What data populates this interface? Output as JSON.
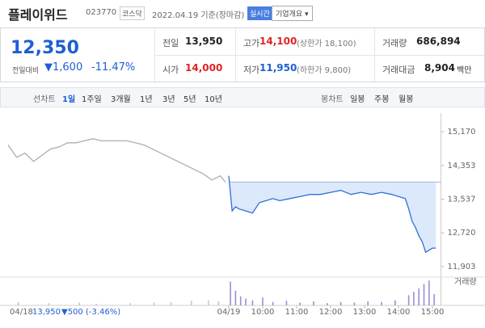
{
  "header": {
    "name": "플레이위드",
    "code": "023770",
    "market": "코스닥",
    "date": "2022.04.19 기준(장마감)",
    "realtime": "실시간",
    "company": "기업개요 ▾"
  },
  "price": {
    "current": "12,350",
    "change_label": "전일대비",
    "change": "▼1,600",
    "change_pct": "-11.47%",
    "stats": [
      {
        "label": "전일",
        "value": "13,950"
      },
      {
        "label": "고가",
        "value": "14,100",
        "note": "(상한가 18,100)"
      },
      {
        "label": "거래량",
        "value": "686,894"
      },
      {
        "label": "시가",
        "value": "14,000"
      },
      {
        "label": "저가",
        "value": "11,950",
        "note": "(하한가 9,800)"
      },
      {
        "label": "거래대금",
        "value": "8,904",
        "unit": "백만"
      }
    ]
  },
  "tabs": {
    "line_label": "선차트",
    "line": [
      "1일",
      "1주일",
      "3개월",
      "1년",
      "3년",
      "5년",
      "10년"
    ],
    "candle_label": "봉차트",
    "candle": [
      "일봉",
      "주봉",
      "월봉"
    ]
  },
  "chart_data": {
    "type": "line",
    "xlim": [
      0,
      12.75
    ],
    "xticks": [
      {
        "value": 6.5,
        "label": "04/19"
      },
      {
        "value": 7.5,
        "label": "10:00"
      },
      {
        "value": 8.5,
        "label": "11:00"
      },
      {
        "value": 9.5,
        "label": "12:00"
      },
      {
        "value": 10.5,
        "label": "13:00"
      },
      {
        "value": 11.5,
        "label": "14:00"
      },
      {
        "value": 12.5,
        "label": "15:00"
      }
    ],
    "ylim": [
      11707,
      15620
    ],
    "yticks": [
      {
        "value": 15170,
        "label": "15,170"
      },
      {
        "value": 14353,
        "label": "14,353"
      },
      {
        "value": 13537,
        "label": "13,537"
      },
      {
        "value": 12720,
        "label": "12,720"
      },
      {
        "value": 11903,
        "label": "11,903"
      }
    ],
    "baseline": 13950,
    "series": [
      {
        "color": "#a9adb3",
        "x": [
          0,
          0.25,
          0.5,
          0.75,
          1,
          1.25,
          1.5,
          1.75,
          2,
          2.25,
          2.5,
          2.75,
          3,
          3.25,
          3.5,
          3.75,
          4,
          4.25,
          4.5,
          4.75,
          5,
          5.25,
          5.5,
          5.75,
          6,
          6.25,
          6.4
        ],
        "values": [
          14850,
          14550,
          14650,
          14450,
          14600,
          14750,
          14800,
          14900,
          14900,
          14950,
          15000,
          14950,
          14950,
          14950,
          14950,
          14900,
          14850,
          14750,
          14650,
          14550,
          14450,
          14350,
          14250,
          14150,
          14000,
          14100,
          13950
        ]
      },
      {
        "color": "#2f6fd6",
        "fill": "#dce9fb",
        "x": [
          6.5,
          6.6,
          6.7,
          6.8,
          7.0,
          7.2,
          7.4,
          7.6,
          7.8,
          8.0,
          8.3,
          8.6,
          8.9,
          9.2,
          9.5,
          9.8,
          10.1,
          10.4,
          10.7,
          11.0,
          11.3,
          11.5,
          11.7,
          11.8,
          11.9,
          12.0,
          12.1,
          12.2,
          12.3,
          12.4,
          12.5,
          12.6
        ],
        "values": [
          14100,
          13250,
          13350,
          13300,
          13250,
          13200,
          13450,
          13500,
          13550,
          13500,
          13550,
          13600,
          13650,
          13650,
          13700,
          13750,
          13650,
          13700,
          13650,
          13700,
          13650,
          13600,
          13550,
          13300,
          13000,
          12850,
          12650,
          12500,
          12250,
          12300,
          12350,
          12350
        ]
      }
    ],
    "volume": {
      "label": "거래량",
      "ylim": [
        0,
        50000
      ],
      "series": [
        {
          "color": "#c4c7cc",
          "x": [
            0.3,
            1.2,
            2.1,
            2.6,
            3.6,
            4.3,
            4.8,
            5.4,
            5.9,
            6.2
          ],
          "values": [
            6000,
            4000,
            5000,
            3000,
            4000,
            5000,
            6000,
            8000,
            9000,
            7000
          ]
        },
        {
          "color": "#9b8fd6",
          "x": [
            6.55,
            6.7,
            6.85,
            7.0,
            7.2,
            7.5,
            7.8,
            8.2,
            8.6,
            9.0,
            9.4,
            9.8,
            10.2,
            10.6,
            11.0,
            11.4,
            11.8,
            11.95,
            12.1,
            12.25,
            12.4,
            12.55
          ],
          "values": [
            42000,
            26000,
            16000,
            12000,
            9000,
            14000,
            6000,
            8000,
            5000,
            7000,
            4000,
            6000,
            5000,
            7000,
            6000,
            9000,
            18000,
            24000,
            30000,
            38000,
            44000,
            20000
          ]
        }
      ]
    },
    "prev_day": {
      "date": "04/18",
      "close": "13,950",
      "change": "▼500 (-3.46%)"
    }
  }
}
